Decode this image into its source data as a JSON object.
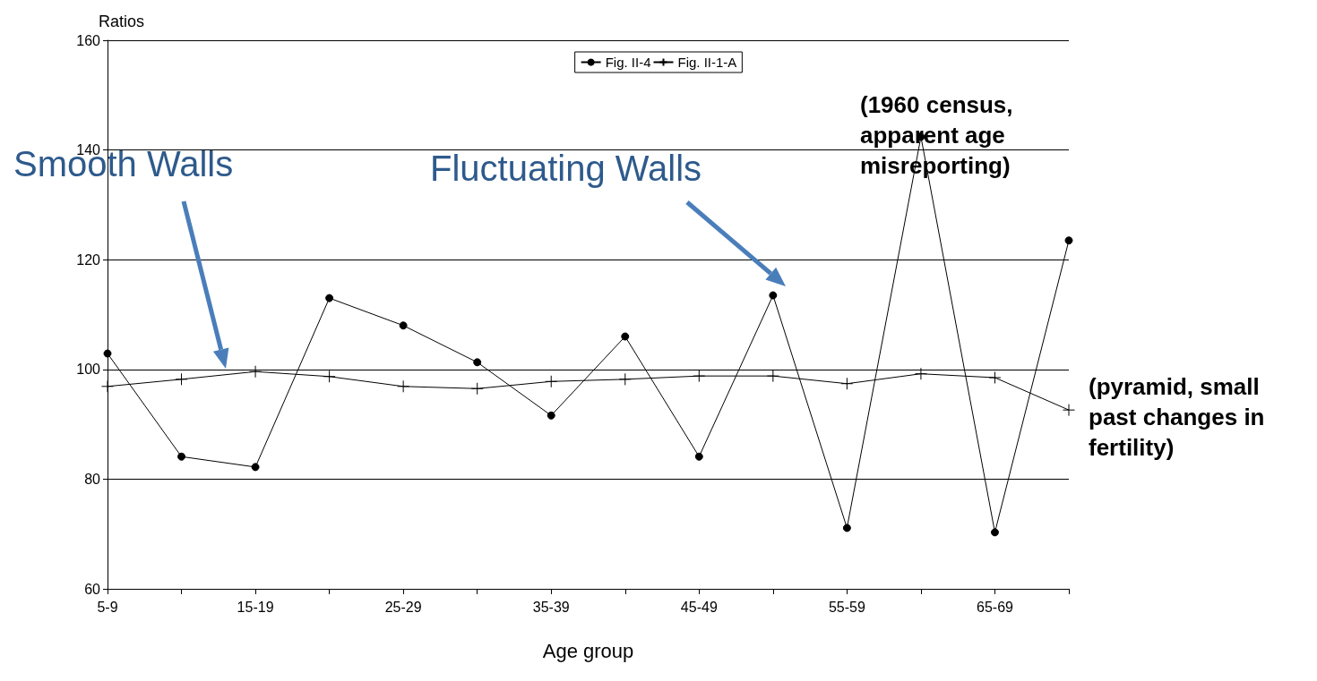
{
  "chart_data": {
    "type": "line",
    "ylabel": "Ratios",
    "xlabel": "Age group",
    "categories": [
      "5-9",
      null,
      "15-19",
      null,
      "25-29",
      null,
      "35-39",
      null,
      "45-49",
      null,
      "55-59",
      null,
      "65-69",
      null
    ],
    "series": [
      {
        "name": "Fig. II-4",
        "color": "#000000",
        "marker": "circle",
        "values": [
          102.9,
          84.1,
          82.2,
          113,
          108,
          101.3,
          91.6,
          106,
          84.1,
          113.5,
          71.1,
          142.4,
          70.3,
          123.5
        ]
      },
      {
        "name": "Fig. II-1-A",
        "color": "#000000",
        "marker": "cross",
        "values": [
          96.9,
          98.2,
          99.6,
          98.7,
          96.9,
          96.5,
          97.8,
          98.2,
          98.8,
          98.8,
          97.4,
          99.2,
          98.5,
          92.6
        ]
      }
    ],
    "ylim": [
      60,
      160
    ],
    "yticks": [
      60,
      80,
      100,
      120,
      140,
      160
    ],
    "grid": "y",
    "legend": "top",
    "line_style": "solid",
    "annotations": [
      "Smooth Walls",
      "Fluctuating Walls",
      "(1960 census,\napparent age\nmisreporting)",
      "(pyramid, small\npast changes in\nfertility)"
    ]
  }
}
